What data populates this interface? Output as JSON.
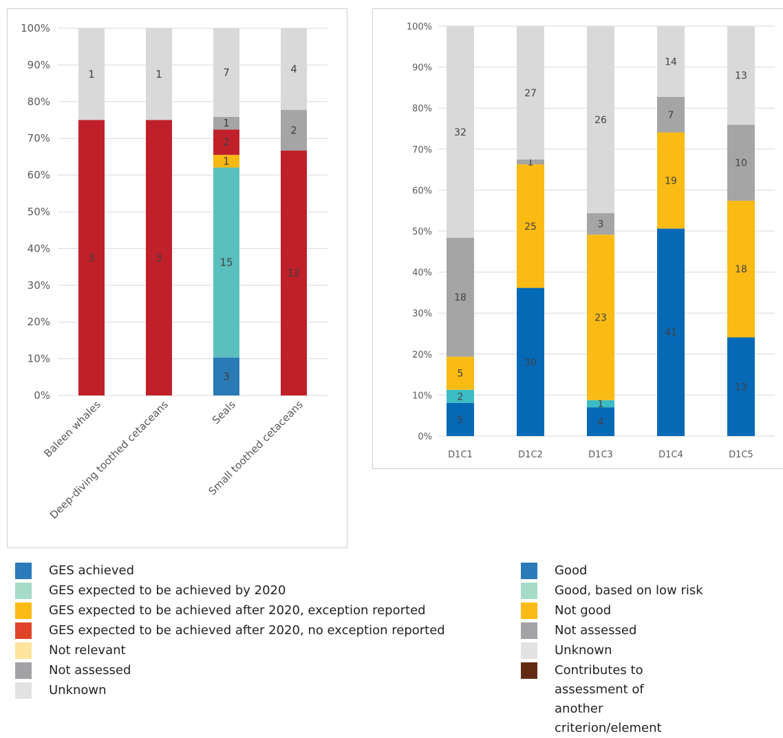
{
  "chart_data": [
    {
      "type": "bar",
      "stacked": "percent",
      "categories": [
        "Baleen whales",
        "Deep-diving toothed cetaceans",
        "Seals",
        "Small toothed cetaceans"
      ],
      "ylim": [
        0,
        100
      ],
      "yticks": [
        "0%",
        "10%",
        "20%",
        "30%",
        "40%",
        "50%",
        "60%",
        "70%",
        "80%",
        "90%",
        "100%"
      ],
      "grid": true,
      "series": [
        {
          "name": "GES achieved",
          "color": "#2a7ab6",
          "values": [
            0,
            0,
            3,
            0
          ]
        },
        {
          "name": "GES expected to be achieved by 2020",
          "color": "#5bbfbd",
          "values": [
            0,
            0,
            15,
            0
          ]
        },
        {
          "name": "GES expected to be achieved after 2020, exception reported",
          "color": "#f9b814",
          "values": [
            0,
            0,
            1,
            0
          ]
        },
        {
          "name": "GES expected to be achieved after 2020, no exception reported",
          "color": "#c0202a",
          "values": [
            3,
            3,
            2,
            12
          ]
        },
        {
          "name": "Not relevant",
          "color": "#fde49a",
          "values": [
            0,
            0,
            0,
            0
          ]
        },
        {
          "name": "Not assessed",
          "color": "#a5a5a5",
          "values": [
            0,
            0,
            1,
            2
          ]
        },
        {
          "name": "Unknown",
          "color": "#d9d9d9",
          "values": [
            1,
            1,
            7,
            4
          ]
        }
      ]
    },
    {
      "type": "bar",
      "stacked": "percent",
      "categories": [
        "D1C1",
        "D1C2",
        "D1C3",
        "D1C4",
        "D1C5"
      ],
      "ylim": [
        0,
        100
      ],
      "yticks": [
        "0%",
        "10%",
        "20%",
        "30%",
        "40%",
        "50%",
        "60%",
        "70%",
        "80%",
        "90%",
        "100%"
      ],
      "grid": true,
      "series": [
        {
          "name": "Good",
          "color": "#0569b6",
          "values": [
            5,
            30,
            4,
            41,
            13
          ]
        },
        {
          "name": "Good, based on low risk",
          "color": "#3cbcc4",
          "values": [
            2,
            0,
            1,
            0,
            0
          ]
        },
        {
          "name": "Not good",
          "color": "#f9bb14",
          "values": [
            5,
            25,
            23,
            19,
            18
          ]
        },
        {
          "name": "Not assessed",
          "color": "#a5a5a5",
          "values": [
            18,
            1,
            3,
            7,
            10
          ]
        },
        {
          "name": "Unknown",
          "color": "#d9d9d9",
          "values": [
            32,
            27,
            26,
            14,
            13
          ]
        }
      ]
    }
  ],
  "legend_left": [
    {
      "label": "GES achieved",
      "color": "#2b7bba"
    },
    {
      "label": "GES expected to be achieved by 2020",
      "color": "#a6dbc8"
    },
    {
      "label": "GES expected to be achieved after 2020, exception reported",
      "color": "#fbbb16"
    },
    {
      "label": "GES expected to be achieved after 2020, no exception reported",
      "color": "#e0442a"
    },
    {
      "label": "Not relevant",
      "color": "#fee49c"
    },
    {
      "label": "Not assessed",
      "color": "#a3a3a5"
    },
    {
      "label": "Unknown",
      "color": "#e2e2e2"
    }
  ],
  "legend_right": [
    {
      "label": "Good",
      "color": "#2b7bba"
    },
    {
      "label": "Good, based on low risk",
      "color": "#a6dbc8"
    },
    {
      "label": "Not good",
      "color": "#fbbb16"
    },
    {
      "label": "Not assessed",
      "color": "#a3a3a5"
    },
    {
      "label": "Unknown",
      "color": "#e2e2e2"
    },
    {
      "label": "Contributes to assessment of\nanother criterion/element",
      "color": "#632a13"
    }
  ]
}
